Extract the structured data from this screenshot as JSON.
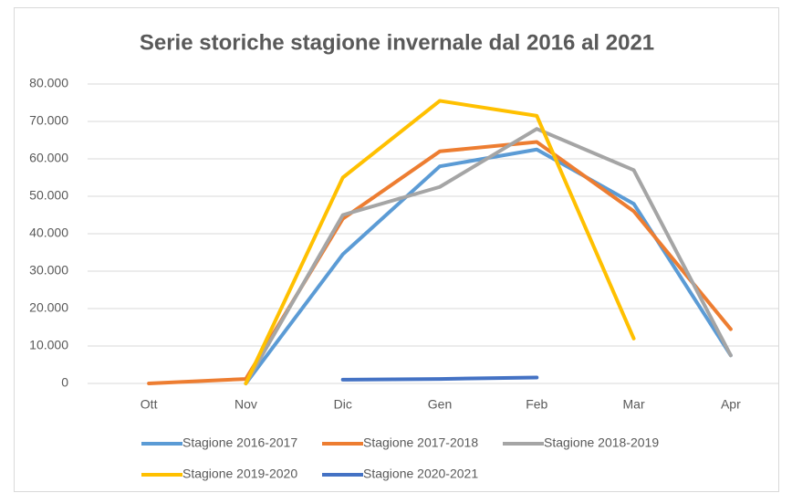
{
  "chart_data": {
    "type": "line",
    "title": "Serie storiche stagione invernale dal 2016 al 2021",
    "categories": [
      "Ott",
      "Nov",
      "Dic",
      "Gen",
      "Feb",
      "Mar",
      "Apr"
    ],
    "series": [
      {
        "name": "Stagione 2016-2017",
        "color": "#5b9bd5",
        "values": [
          null,
          0,
          34500,
          58000,
          62500,
          48000,
          7500
        ]
      },
      {
        "name": "Stagione 2017-2018",
        "color": "#ed7d31",
        "values": [
          0,
          1200,
          44000,
          62000,
          64500,
          46000,
          14500
        ]
      },
      {
        "name": "Stagione 2018-2019",
        "color": "#a5a5a5",
        "values": [
          null,
          0,
          45000,
          52500,
          68000,
          57000,
          7500
        ]
      },
      {
        "name": "Stagione 2019-2020",
        "color": "#ffc000",
        "values": [
          null,
          0,
          55000,
          75500,
          71500,
          12000,
          null
        ]
      },
      {
        "name": "Stagione 2020-2021",
        "color": "#4472c4",
        "values": [
          null,
          null,
          1000,
          1200,
          1600,
          null,
          null
        ]
      }
    ],
    "ylim": [
      0,
      80000
    ],
    "yticks": [
      0,
      {
        "value": 10000,
        "label": "10.000"
      },
      {
        "value": 20000,
        "label": "20.000"
      },
      {
        "value": 30000,
        "label": "30.000"
      },
      {
        "value": 40000,
        "label": "40.000"
      },
      {
        "value": 50000,
        "label": "50.000"
      },
      {
        "value": 60000,
        "label": "60.000"
      },
      {
        "value": 70000,
        "label": "70.000"
      },
      {
        "value": 80000,
        "label": "80.000"
      }
    ],
    "grid": true,
    "legend": "bottom"
  }
}
